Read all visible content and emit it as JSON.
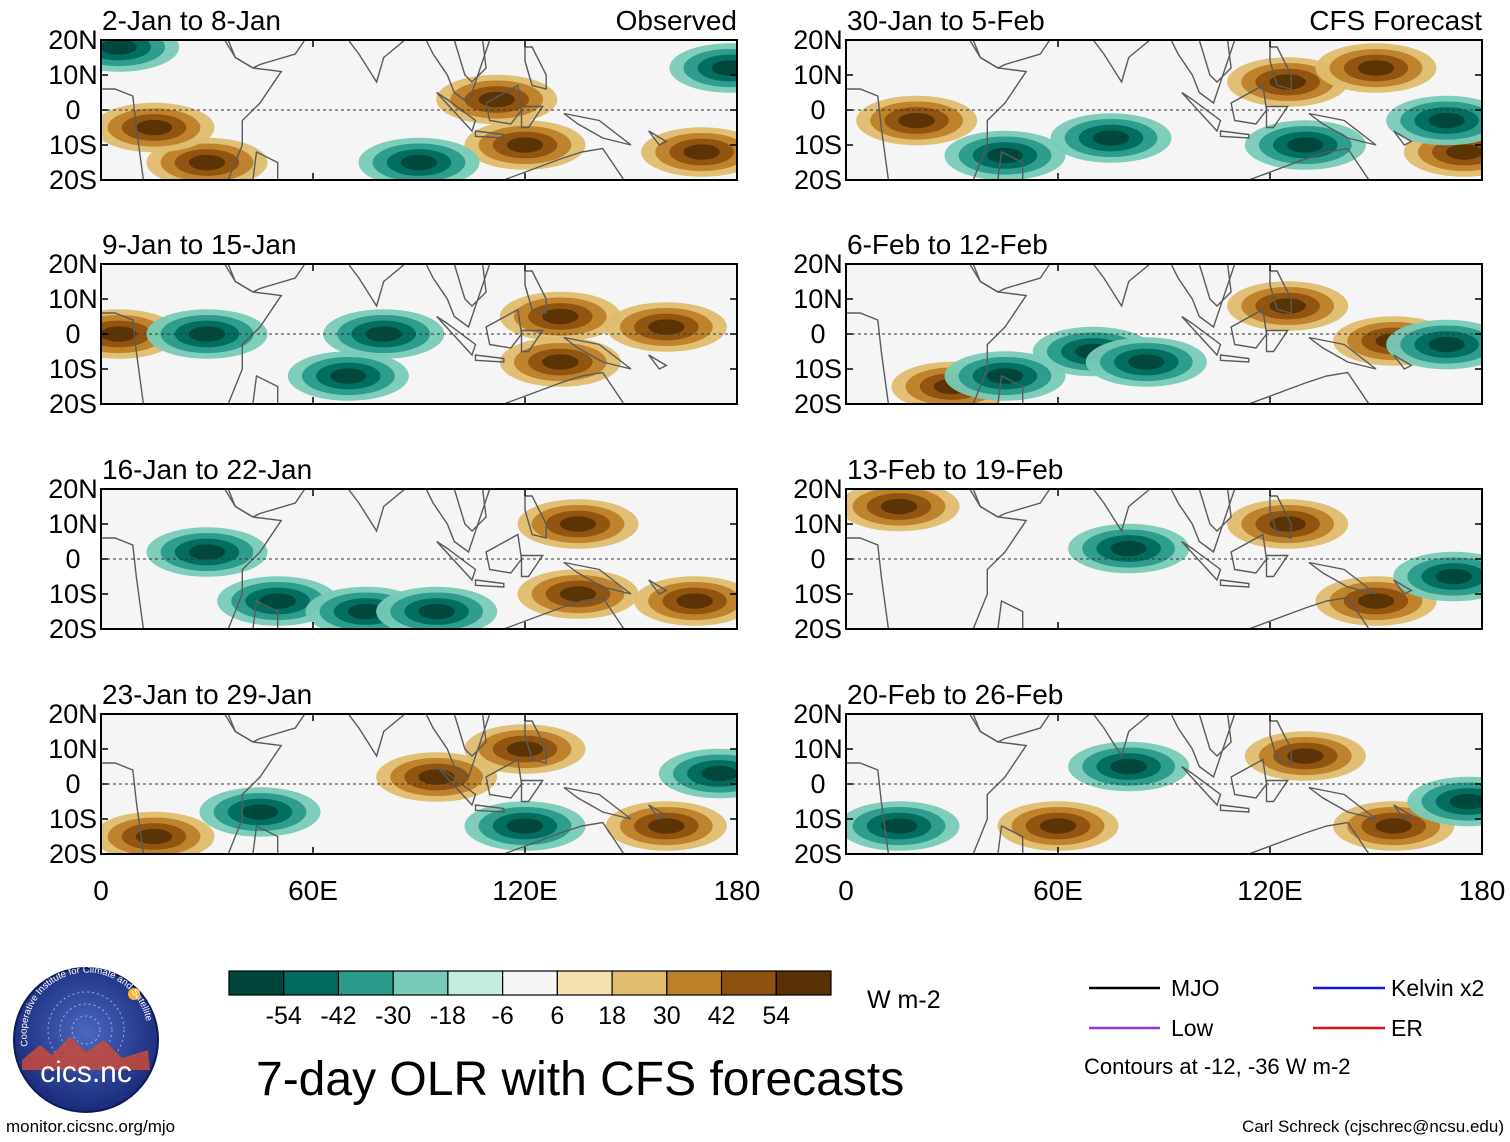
{
  "figure": {
    "title": "7-day OLR with CFS forecasts",
    "units": "W m-2",
    "footer_left": "monitor.cicsnc.org/mjo",
    "footer_right": "Carl Schreck (cjschrec@ncsu.edu)",
    "logo_text": "cics.nc",
    "logo_ring_text": "Cooperative Institute for Climate and Satellites"
  },
  "chart_data": {
    "type": "heatmap",
    "variable": "OLR anomaly",
    "x_ticks": [
      "0",
      "60E",
      "120E",
      "180"
    ],
    "x_values": [
      0,
      60,
      120,
      180
    ],
    "xlim": [
      0,
      180
    ],
    "y_ticks": [
      "20N",
      "10N",
      "0",
      "10S",
      "20S"
    ],
    "y_values": [
      20,
      10,
      0,
      -10,
      -20
    ],
    "ylim": [
      -20,
      20
    ],
    "colorbar": {
      "tick_labels": [
        "-54",
        "-42",
        "-30",
        "-18",
        "-6",
        "6",
        "18",
        "30",
        "42",
        "54"
      ],
      "colors": [
        "#00463a",
        "#006b5e",
        "#2a9a8a",
        "#78cbb8",
        "#c4ebdf",
        "#f5f5f5",
        "#f5e1b0",
        "#dfbc6e",
        "#bd8029",
        "#8f5110",
        "#583104"
      ]
    },
    "legend": {
      "items": [
        {
          "label": "MJO",
          "color": "#000000"
        },
        {
          "label": "Kelvin x2",
          "color": "#0a1ae0"
        },
        {
          "label": "Low",
          "color": "#9a33e0"
        },
        {
          "label": "ER",
          "color": "#e01010"
        }
      ],
      "note": "Contours at -12, -36 W m-2"
    },
    "panels": [
      {
        "label": "2-Jan to 8-Jan",
        "corner": "Observed",
        "col": 0,
        "row": 0,
        "dry_centers": [
          [
            112,
            3
          ],
          [
            120,
            -10
          ],
          [
            170,
            -12
          ],
          [
            30,
            -15
          ],
          [
            15,
            -5
          ]
        ],
        "wet_centers": [
          [
            90,
            -15
          ],
          [
            178,
            12
          ],
          [
            5,
            18
          ]
        ]
      },
      {
        "label": "9-Jan to 15-Jan",
        "corner": "",
        "col": 0,
        "row": 1,
        "dry_centers": [
          [
            130,
            5
          ],
          [
            130,
            -8
          ],
          [
            160,
            2
          ],
          [
            5,
            0
          ]
        ],
        "wet_centers": [
          [
            70,
            -12
          ],
          [
            80,
            0
          ],
          [
            30,
            0
          ]
        ]
      },
      {
        "label": "16-Jan to 22-Jan",
        "corner": "",
        "col": 0,
        "row": 2,
        "dry_centers": [
          [
            135,
            10
          ],
          [
            135,
            -10
          ],
          [
            168,
            -12
          ]
        ],
        "wet_centers": [
          [
            50,
            -12
          ],
          [
            75,
            -15
          ],
          [
            95,
            -15
          ],
          [
            30,
            2
          ]
        ]
      },
      {
        "label": "23-Jan to 29-Jan",
        "corner": "",
        "col": 0,
        "row": 3,
        "dry_centers": [
          [
            95,
            2
          ],
          [
            120,
            10
          ],
          [
            160,
            -12
          ],
          [
            15,
            -15
          ]
        ],
        "wet_centers": [
          [
            45,
            -8
          ],
          [
            120,
            -12
          ],
          [
            175,
            3
          ]
        ]
      },
      {
        "label": "30-Jan to 5-Feb",
        "corner": "CFS Forecast",
        "col": 1,
        "row": 0,
        "dry_centers": [
          [
            125,
            8
          ],
          [
            150,
            12
          ],
          [
            20,
            -3
          ],
          [
            175,
            -12
          ]
        ],
        "wet_centers": [
          [
            75,
            -8
          ],
          [
            45,
            -13
          ],
          [
            130,
            -10
          ],
          [
            170,
            -3
          ]
        ]
      },
      {
        "label": "6-Feb to 12-Feb",
        "corner": "",
        "col": 1,
        "row": 1,
        "dry_centers": [
          [
            125,
            8
          ],
          [
            30,
            -15
          ],
          [
            155,
            -2
          ]
        ],
        "wet_centers": [
          [
            70,
            -5
          ],
          [
            85,
            -8
          ],
          [
            170,
            -3
          ],
          [
            45,
            -12
          ]
        ]
      },
      {
        "label": "13-Feb to 19-Feb",
        "corner": "",
        "col": 1,
        "row": 2,
        "dry_centers": [
          [
            125,
            10
          ],
          [
            150,
            -12
          ],
          [
            15,
            15
          ]
        ],
        "wet_centers": [
          [
            172,
            -5
          ],
          [
            80,
            3
          ]
        ]
      },
      {
        "label": "20-Feb to 26-Feb",
        "corner": "",
        "col": 1,
        "row": 3,
        "dry_centers": [
          [
            130,
            8
          ],
          [
            155,
            -12
          ],
          [
            60,
            -12
          ]
        ],
        "wet_centers": [
          [
            176,
            -5
          ],
          [
            80,
            5
          ],
          [
            15,
            -12
          ]
        ]
      }
    ]
  }
}
